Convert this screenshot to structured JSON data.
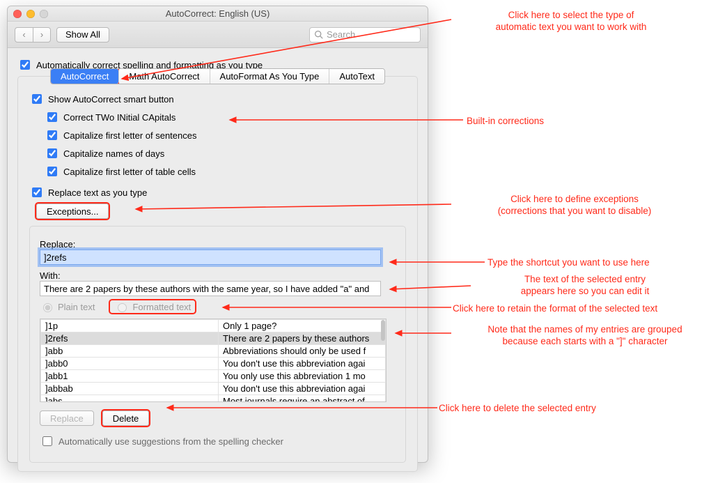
{
  "colors": {
    "accent_blue": "#3b7ff5",
    "annotation_red": "#ff2a1a",
    "window_bg": "#ececec",
    "border_gray": "#bfbfbf",
    "disabled_text": "#b5b5b5"
  },
  "window": {
    "title": "AutoCorrect: English (US)",
    "back_icon": "‹",
    "forward_icon": "›",
    "show_all_label": "Show All",
    "search_placeholder": "Search"
  },
  "top_checkbox": "Automatically correct spelling and formatting as you type",
  "tabs": {
    "items": [
      {
        "label": "AutoCorrect",
        "active": true
      },
      {
        "label": "Math AutoCorrect",
        "active": false
      },
      {
        "label": "AutoFormat As You Type",
        "active": false
      },
      {
        "label": "AutoText",
        "active": false
      }
    ]
  },
  "checks": {
    "smart_button": "Show AutoCorrect smart button",
    "two_caps": "Correct TWo INitial CApitals",
    "first_sentences": "Capitalize first letter of sentences",
    "days": "Capitalize names of days",
    "table_cells": "Capitalize first letter of table cells",
    "replace_as_type": "Replace text as you type"
  },
  "exceptions_label": "Exceptions...",
  "replace_section": {
    "replace_label": "Replace:",
    "replace_value": "]2refs",
    "with_label": "With:",
    "with_value": "There are 2 papers by these authors with the same year, so I have added \"a\" and",
    "plain_text_label": "Plain text",
    "formatted_text_label": "Formatted text",
    "rows": [
      {
        "k": "]1p",
        "v": "Only 1 page?"
      },
      {
        "k": "]2refs",
        "v": "There are 2 papers by these authors"
      },
      {
        "k": "]abb",
        "v": "Abbreviations should only be used f"
      },
      {
        "k": "]abb0",
        "v": "You don't use this abbreviation agai"
      },
      {
        "k": "]abb1",
        "v": "You only use this abbreviation 1 mo"
      },
      {
        "k": "]abbab",
        "v": "You don't use this abbreviation agai"
      },
      {
        "k": "]abs",
        "v": "Most journals require an abstract of"
      }
    ],
    "selected_index": 1,
    "replace_button": "Replace",
    "delete_button": "Delete",
    "auto_suggest": "Automatically use suggestions from the spelling checker"
  },
  "annotations": {
    "a_tabs": "Click here to select the type of\nautomatic text you want to work with",
    "a_builtin": "Built-in corrections",
    "a_exceptions": "Click here to define exceptions\n(corrections that you want to disable)",
    "a_shortcut": "Type the shortcut you want to use here",
    "a_with": "The text of the selected entry\nappears here so you can edit it",
    "a_formatted": "Click here to retain the format of the selected text",
    "a_grouped": "Note that the names of my entries are grouped\nbecause each starts with a \"]\" character",
    "a_delete": "Click here to delete the selected entry"
  }
}
